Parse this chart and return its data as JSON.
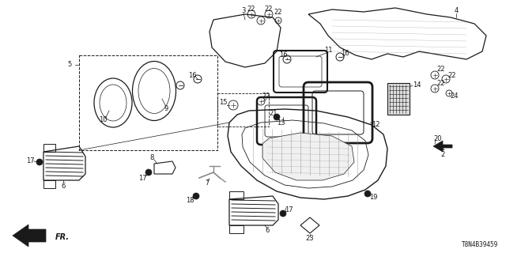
{
  "bg_color": "#ffffff",
  "diagram_code": "T8N4B39459",
  "dark": "#1a1a1a",
  "gray": "#888888",
  "lw_main": 0.9,
  "lw_thin": 0.5,
  "figsize": [
    6.4,
    3.2
  ],
  "dpi": 100
}
